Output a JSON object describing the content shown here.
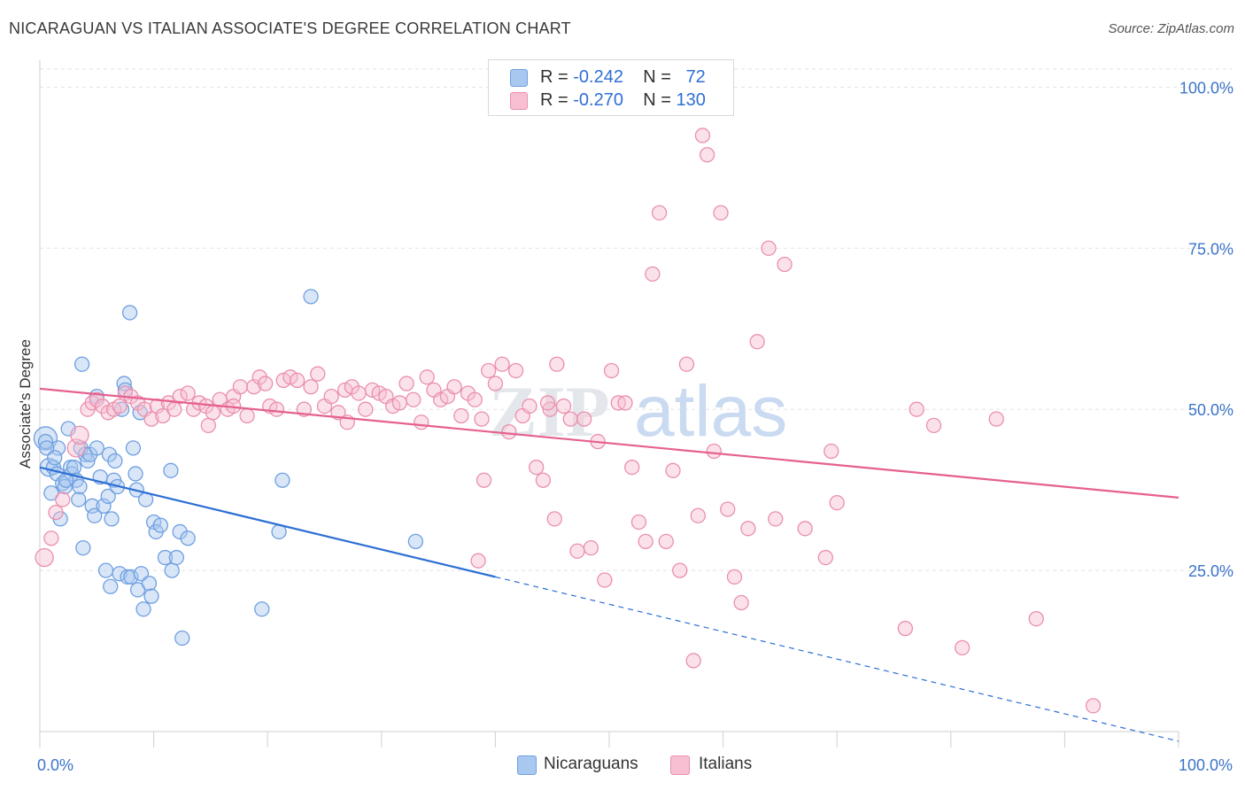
{
  "header": {
    "title": "NICARAGUAN VS ITALIAN ASSOCIATE'S DEGREE CORRELATION CHART",
    "source": "Source: ZipAtlas.com"
  },
  "legend": {
    "rows": [
      {
        "r_label": "R =",
        "r_value": "-0.242",
        "n_label": "N =",
        "n_value": "72"
      },
      {
        "r_label": "R =",
        "r_value": "-0.270",
        "n_label": "N =",
        "n_value": "130"
      }
    ],
    "bottom": [
      "Nicaraguans",
      "Italians"
    ]
  },
  "watermark": {
    "zip": "ZIP",
    "atlas": "atlas"
  },
  "chart_data": {
    "type": "scatter",
    "ylabel": "Associate's Degree",
    "xlim": [
      0,
      100
    ],
    "ylim": [
      0,
      105
    ],
    "x_tick_labels": [
      "0.0%",
      "100.0%"
    ],
    "y_ticks": [
      25,
      50,
      75,
      100
    ],
    "y_tick_labels": [
      "25.0%",
      "50.0%",
      "75.0%",
      "100.0%"
    ],
    "grid": true,
    "colors": {
      "nicaraguans_fill": "#a9c8f0",
      "nicaraguans_stroke": "#6f9fe0",
      "nicaraguans_line": "#2d6fd3",
      "italians_fill": "#f7bfd1",
      "italians_stroke": "#ea8fae",
      "italians_line": "#e6608e",
      "axis_text": "#3c74c9"
    },
    "series": [
      {
        "name": "Nicaraguans",
        "trend": {
          "x0": 0,
          "y0": 41,
          "x1": 40,
          "y1": 24,
          "dash_to_x": 100,
          "dash_to_y": -1.5
        },
        "points": [
          [
            0.5,
            45.5
          ],
          [
            0.5,
            45
          ],
          [
            0.8,
            41
          ],
          [
            1.0,
            37
          ],
          [
            1.2,
            41
          ],
          [
            1.5,
            40
          ],
          [
            1.6,
            44
          ],
          [
            1.8,
            33
          ],
          [
            2.0,
            38.5
          ],
          [
            2.2,
            38
          ],
          [
            2.5,
            47
          ],
          [
            2.7,
            41
          ],
          [
            2.8,
            40
          ],
          [
            3.0,
            41
          ],
          [
            3.2,
            39
          ],
          [
            3.4,
            36
          ],
          [
            3.5,
            38
          ],
          [
            3.6,
            44
          ],
          [
            3.7,
            57
          ],
          [
            3.8,
            28.5
          ],
          [
            4.0,
            43
          ],
          [
            4.2,
            42
          ],
          [
            4.4,
            43
          ],
          [
            4.6,
            35
          ],
          [
            4.8,
            33.5
          ],
          [
            5.0,
            52
          ],
          [
            5.0,
            44
          ],
          [
            5.3,
            39.5
          ],
          [
            5.6,
            35
          ],
          [
            5.8,
            25
          ],
          [
            6.0,
            36.5
          ],
          [
            6.1,
            43
          ],
          [
            6.3,
            33
          ],
          [
            6.5,
            39
          ],
          [
            6.6,
            42
          ],
          [
            6.8,
            38
          ],
          [
            7.0,
            24.5
          ],
          [
            7.2,
            50
          ],
          [
            7.4,
            54
          ],
          [
            7.5,
            53
          ],
          [
            7.7,
            24
          ],
          [
            7.9,
            65
          ],
          [
            8.0,
            24
          ],
          [
            8.2,
            44
          ],
          [
            8.4,
            40
          ],
          [
            8.5,
            37.5
          ],
          [
            8.6,
            22
          ],
          [
            8.8,
            49.5
          ],
          [
            8.9,
            24.5
          ],
          [
            9.1,
            19
          ],
          [
            9.3,
            36
          ],
          [
            9.6,
            23
          ],
          [
            10.0,
            32.5
          ],
          [
            10.2,
            31
          ],
          [
            10.6,
            32
          ],
          [
            11.0,
            27
          ],
          [
            11.5,
            40.5
          ],
          [
            11.6,
            25
          ],
          [
            12.0,
            27
          ],
          [
            12.3,
            31
          ],
          [
            12.5,
            14.5
          ],
          [
            13.0,
            30
          ],
          [
            19.5,
            19
          ],
          [
            21.0,
            31
          ],
          [
            21.3,
            39
          ],
          [
            23.8,
            67.5
          ],
          [
            33.0,
            29.5
          ],
          [
            0.6,
            44
          ],
          [
            1.3,
            42.5
          ],
          [
            2.3,
            39
          ],
          [
            6.2,
            22.5
          ],
          [
            9.8,
            21
          ]
        ]
      },
      {
        "name": "Italians",
        "trend": {
          "x0": 0,
          "y0": 53.2,
          "x1": 100,
          "y1": 36.3
        },
        "points": [
          [
            0.4,
            27
          ],
          [
            1.0,
            30
          ],
          [
            1.4,
            34
          ],
          [
            2.0,
            36
          ],
          [
            3.2,
            44
          ],
          [
            3.5,
            46
          ],
          [
            4.2,
            50
          ],
          [
            4.6,
            51
          ],
          [
            5.0,
            51.5
          ],
          [
            5.5,
            50.5
          ],
          [
            6.0,
            49.5
          ],
          [
            6.5,
            50
          ],
          [
            7.0,
            50.5
          ],
          [
            7.5,
            52.5
          ],
          [
            8.0,
            52
          ],
          [
            8.6,
            51
          ],
          [
            9.2,
            50
          ],
          [
            9.8,
            48.5
          ],
          [
            10.3,
            50.5
          ],
          [
            10.8,
            49
          ],
          [
            11.3,
            51
          ],
          [
            11.8,
            50
          ],
          [
            12.3,
            52
          ],
          [
            13.0,
            52.5
          ],
          [
            13.5,
            50
          ],
          [
            14.0,
            51
          ],
          [
            14.6,
            50.5
          ],
          [
            15.2,
            49.5
          ],
          [
            15.8,
            51.5
          ],
          [
            16.5,
            50
          ],
          [
            17.0,
            52
          ],
          [
            17.6,
            53.5
          ],
          [
            18.2,
            49
          ],
          [
            18.8,
            53.5
          ],
          [
            19.3,
            55
          ],
          [
            19.8,
            54
          ],
          [
            20.2,
            50.5
          ],
          [
            20.8,
            50
          ],
          [
            21.4,
            54.5
          ],
          [
            22.0,
            55
          ],
          [
            22.6,
            54.5
          ],
          [
            23.2,
            50
          ],
          [
            23.8,
            53.5
          ],
          [
            24.4,
            55.5
          ],
          [
            25.0,
            50.5
          ],
          [
            25.6,
            52
          ],
          [
            26.2,
            49.5
          ],
          [
            26.8,
            53
          ],
          [
            27.4,
            53.5
          ],
          [
            28.0,
            52.5
          ],
          [
            28.6,
            50
          ],
          [
            29.2,
            53
          ],
          [
            29.8,
            52.5
          ],
          [
            30.4,
            52
          ],
          [
            31.0,
            50.5
          ],
          [
            31.6,
            51
          ],
          [
            32.2,
            54
          ],
          [
            32.8,
            51.5
          ],
          [
            33.5,
            48
          ],
          [
            34.0,
            55
          ],
          [
            34.6,
            53
          ],
          [
            35.2,
            51.5
          ],
          [
            35.8,
            52
          ],
          [
            36.4,
            53.5
          ],
          [
            37.0,
            49
          ],
          [
            37.6,
            52.5
          ],
          [
            38.2,
            51.5
          ],
          [
            38.8,
            48.5
          ],
          [
            39.4,
            56
          ],
          [
            40.0,
            54
          ],
          [
            40.6,
            57
          ],
          [
            41.2,
            46.5
          ],
          [
            41.8,
            56
          ],
          [
            42.4,
            49
          ],
          [
            43.0,
            50.5
          ],
          [
            43.6,
            41
          ],
          [
            44.2,
            39
          ],
          [
            44.8,
            50
          ],
          [
            45.4,
            57
          ],
          [
            46.0,
            50.5
          ],
          [
            46.6,
            48.5
          ],
          [
            47.2,
            28
          ],
          [
            47.8,
            48.5
          ],
          [
            48.4,
            28.5
          ],
          [
            49.0,
            45
          ],
          [
            49.6,
            23.5
          ],
          [
            50.2,
            56
          ],
          [
            50.8,
            51
          ],
          [
            51.4,
            51
          ],
          [
            52.0,
            41
          ],
          [
            52.6,
            32.5
          ],
          [
            53.2,
            29.5
          ],
          [
            53.8,
            71
          ],
          [
            54.4,
            80.5
          ],
          [
            55.0,
            29.5
          ],
          [
            55.6,
            40.5
          ],
          [
            56.2,
            25
          ],
          [
            56.8,
            57
          ],
          [
            57.4,
            11
          ],
          [
            57.8,
            33.5
          ],
          [
            58.2,
            92.5
          ],
          [
            58.6,
            89.5
          ],
          [
            59.2,
            43.5
          ],
          [
            59.8,
            80.5
          ],
          [
            60.4,
            34.5
          ],
          [
            61.0,
            24
          ],
          [
            61.6,
            20
          ],
          [
            62.2,
            31.5
          ],
          [
            63.0,
            60.5
          ],
          [
            64.0,
            75
          ],
          [
            64.6,
            33
          ],
          [
            65.4,
            72.5
          ],
          [
            67.2,
            31.5
          ],
          [
            69.0,
            27
          ],
          [
            69.5,
            43.5
          ],
          [
            70.0,
            35.5
          ],
          [
            76.0,
            16
          ],
          [
            77.0,
            50
          ],
          [
            78.5,
            47.5
          ],
          [
            81.0,
            13
          ],
          [
            84.0,
            48.5
          ],
          [
            87.5,
            17.5
          ],
          [
            92.5,
            4
          ],
          [
            39.0,
            39
          ],
          [
            17.0,
            50.5
          ],
          [
            14.8,
            47.5
          ],
          [
            27.0,
            48
          ],
          [
            38.5,
            26.5
          ],
          [
            44.6,
            51
          ],
          [
            45.2,
            33
          ]
        ]
      }
    ]
  }
}
